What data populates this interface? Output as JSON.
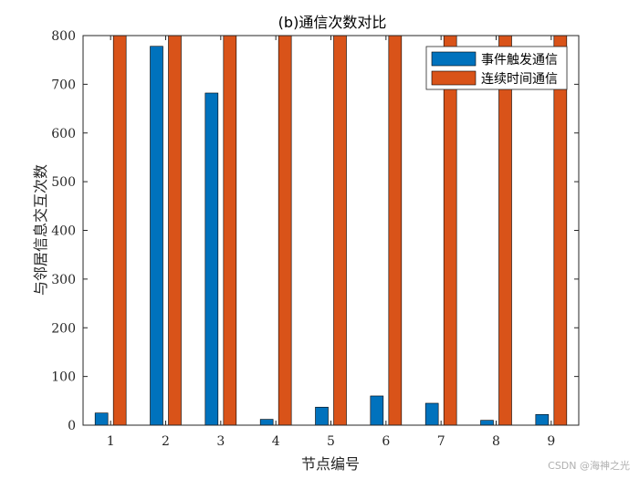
{
  "chart_data": {
    "type": "bar",
    "title": "(b)通信次数对比",
    "xlabel": "节点编号",
    "ylabel": "与邻居信息交互次数",
    "categories": [
      "1",
      "2",
      "3",
      "4",
      "5",
      "6",
      "7",
      "8",
      "9"
    ],
    "ylim": [
      0,
      800
    ],
    "yticks": [
      0,
      100,
      200,
      300,
      400,
      500,
      600,
      700,
      800
    ],
    "series": [
      {
        "name": "事件触发通信",
        "color": "#0072BD",
        "values": [
          25,
          778,
          682,
          12,
          37,
          60,
          45,
          10,
          22
        ]
      },
      {
        "name": "连续时间通信",
        "color": "#D95319",
        "values": [
          800,
          800,
          800,
          800,
          800,
          800,
          800,
          800,
          800
        ]
      }
    ],
    "legend_position": "top-right",
    "grid": false
  },
  "watermark": "CSDN @海神之光"
}
